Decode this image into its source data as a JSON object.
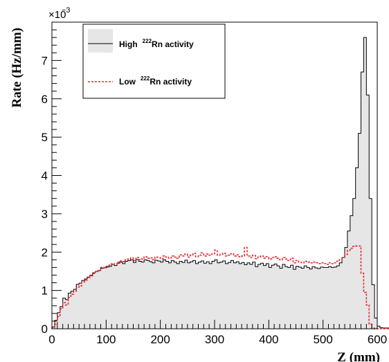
{
  "chart_data": {
    "type": "line",
    "title": "",
    "xlabel": "Z (mm)",
    "ylabel": "Rate (Hz/mm)",
    "y_multiplier_base": "×10",
    "y_multiplier_exp": "−3",
    "xlim": [
      0,
      600
    ],
    "ylim": [
      0,
      8
    ],
    "bin_width": 5,
    "x_ticks": [
      0,
      100,
      200,
      300,
      400,
      500,
      600
    ],
    "x_tick_labels": [
      "0",
      "100",
      "200",
      "300",
      "400",
      "500",
      "600"
    ],
    "y_ticks": [
      0,
      1,
      2,
      3,
      4,
      5,
      6,
      7
    ],
    "y_tick_labels": [
      "0",
      "1",
      "2",
      "3",
      "4",
      "5",
      "6",
      "7"
    ],
    "grid": false,
    "legend_position": "top-left",
    "series": [
      {
        "name": "High ²²²Rn activity",
        "name_prefix": "High",
        "name_sup": "222",
        "name_suffix": "Rn activity",
        "style": "solid-filled",
        "color": "#000000",
        "fill": "#e6e6e6",
        "x_start": 0,
        "values": [
          0.05,
          0.22,
          0.42,
          0.58,
          0.8,
          0.76,
          0.93,
          0.98,
          1.03,
          1.16,
          1.19,
          1.26,
          1.3,
          1.35,
          1.4,
          1.46,
          1.5,
          1.52,
          1.58,
          1.59,
          1.61,
          1.63,
          1.68,
          1.65,
          1.71,
          1.74,
          1.7,
          1.76,
          1.78,
          1.8,
          1.73,
          1.81,
          1.76,
          1.74,
          1.8,
          1.78,
          1.75,
          1.72,
          1.79,
          1.77,
          1.74,
          1.8,
          1.76,
          1.72,
          1.78,
          1.74,
          1.7,
          1.76,
          1.73,
          1.79,
          1.72,
          1.75,
          1.78,
          1.7,
          1.74,
          1.77,
          1.71,
          1.75,
          1.7,
          1.76,
          1.8,
          1.72,
          1.74,
          1.77,
          1.7,
          1.73,
          1.78,
          1.72,
          1.75,
          1.7,
          1.73,
          1.67,
          1.72,
          1.68,
          1.74,
          1.62,
          1.68,
          1.71,
          1.65,
          1.7,
          1.6,
          1.66,
          1.69,
          1.64,
          1.58,
          1.68,
          1.62,
          1.6,
          1.66,
          1.55,
          1.63,
          1.61,
          1.58,
          1.64,
          1.6,
          1.56,
          1.62,
          1.59,
          1.57,
          1.61,
          1.6,
          1.6,
          1.62,
          1.6,
          1.61,
          1.64,
          1.72,
          1.86,
          2.12,
          2.55,
          2.95,
          3.4,
          4.2,
          5.1,
          6.7,
          7.6,
          6.1,
          3.4,
          1.15,
          0.28,
          0.07,
          0.03,
          0.02,
          0.02,
          0.02,
          0.02,
          0.02,
          0.02,
          0.02,
          0.02,
          0.02,
          0.02,
          0.02,
          0.02,
          0.02,
          0.02,
          0.02,
          0.02,
          0.02
        ]
      },
      {
        "name": "Low ²²²Rn activity",
        "name_prefix": "Low",
        "name_sup": "222",
        "name_suffix": "Rn activity",
        "style": "dashed",
        "color": "#e8262c",
        "x_start": 0,
        "values": [
          0.03,
          0.12,
          0.32,
          0.52,
          0.68,
          0.62,
          0.82,
          0.9,
          0.98,
          1.08,
          1.12,
          1.22,
          1.27,
          1.33,
          1.38,
          1.44,
          1.49,
          1.53,
          1.6,
          1.6,
          1.63,
          1.66,
          1.7,
          1.68,
          1.74,
          1.77,
          1.75,
          1.8,
          1.82,
          1.85,
          1.78,
          1.86,
          1.8,
          1.82,
          1.88,
          1.84,
          1.85,
          1.8,
          1.87,
          1.86,
          1.83,
          1.9,
          1.87,
          1.84,
          1.9,
          1.87,
          1.84,
          1.93,
          1.9,
          1.95,
          1.87,
          1.92,
          1.97,
          1.88,
          1.92,
          1.98,
          1.9,
          1.95,
          1.92,
          1.96,
          2.05,
          1.92,
          1.94,
          1.97,
          1.9,
          1.92,
          1.96,
          1.9,
          1.93,
          1.88,
          1.9,
          2.12,
          1.9,
          1.86,
          1.92,
          1.83,
          1.88,
          1.9,
          1.84,
          1.88,
          1.82,
          1.86,
          1.88,
          1.84,
          1.8,
          1.86,
          1.82,
          1.78,
          1.84,
          1.72,
          1.78,
          1.74,
          1.72,
          1.76,
          1.74,
          1.72,
          1.74,
          1.72,
          1.7,
          1.72,
          1.7,
          1.68,
          1.72,
          1.7,
          1.72,
          1.76,
          1.8,
          1.86,
          1.94,
          2.05,
          2.1,
          2.15,
          2.16,
          2.16,
          1.45,
          0.95,
          0.62,
          0.12,
          0.02,
          0.0,
          0.0,
          0.0,
          0.0,
          0.0,
          0.0,
          0.0,
          0.0,
          0.0,
          0.0,
          0.0,
          0.0,
          0.0,
          0.0,
          0.0,
          0.0,
          0.0,
          0.0
        ]
      }
    ]
  }
}
